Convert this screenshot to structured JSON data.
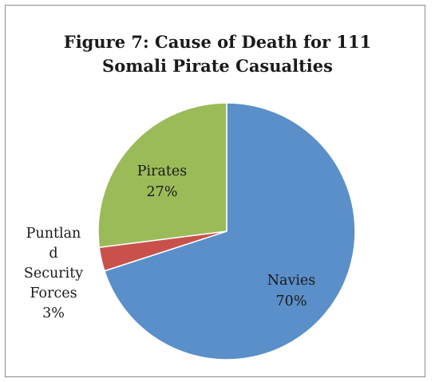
{
  "chart_data": {
    "type": "pie",
    "title_lines": [
      "Figure 7: Cause of Death for 111",
      "Somali Pirate Casualties"
    ],
    "slices": [
      {
        "label_lines": [
          "Navies",
          "70%"
        ],
        "value": 70,
        "color": "#5b8fc9"
      },
      {
        "label_lines": [
          "Puntlan",
          "d",
          "Security",
          "Forces",
          "3%"
        ],
        "value": 3,
        "color": "#c9514c"
      },
      {
        "label_lines": [
          "Pirates",
          "27%"
        ],
        "value": 27,
        "color": "#9bbb59"
      }
    ],
    "legend": "none"
  }
}
